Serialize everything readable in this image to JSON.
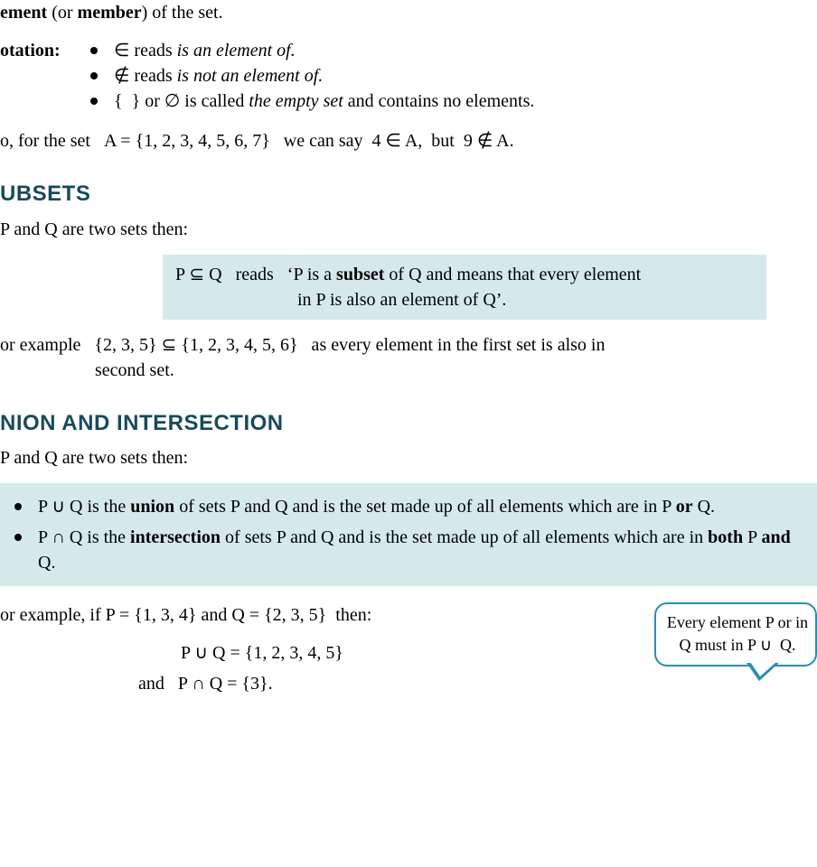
{
  "line_top_html": "<b>ement</b> (or <b>member</b>) of the set.",
  "notation_label": "otation:",
  "notation_items": [
    "∈ reads <i>is an element of.</i>",
    "∉ reads <i>is not an element of.</i>",
    "{&nbsp;&nbsp;} or ∅ is called <i>the empty set</i> and contains no elements."
  ],
  "example_set_line": "o, for the set&nbsp;&nbsp;&nbsp;A = {1, 2, 3, 4, 5, 6, 7}&nbsp;&nbsp;&nbsp;we can say&nbsp;&nbsp;4 ∈ A,&nbsp;&nbsp;but&nbsp;&nbsp;9 ∉ A.",
  "heading_subsets": "UBSETS",
  "pq_intro": "P and Q are two sets then:",
  "subset_box_html": "P ⊆ Q&nbsp;&nbsp;&nbsp;reads&nbsp;&nbsp;&nbsp;‘P is a <b>subset</b> of Q and means that every element<br>&nbsp;&nbsp;&nbsp;&nbsp;&nbsp;&nbsp;&nbsp;&nbsp;&nbsp;&nbsp;&nbsp;&nbsp;&nbsp;&nbsp;&nbsp;&nbsp;&nbsp;&nbsp;&nbsp;&nbsp;&nbsp;&nbsp;&nbsp;&nbsp;&nbsp;&nbsp;&nbsp;in P is also an element of Q’.",
  "subset_example_html": "or example&nbsp;&nbsp;&nbsp;{2, 3, 5} ⊆ {1, 2, 3, 4, 5, 6}&nbsp;&nbsp;&nbsp;as every element in the first set is also in<br>&nbsp;&nbsp;&nbsp;&nbsp;&nbsp;&nbsp;&nbsp;&nbsp;&nbsp;&nbsp;&nbsp;&nbsp;&nbsp;&nbsp;&nbsp;&nbsp;&nbsp;&nbsp;&nbsp;&nbsp;&nbsp;second set.",
  "heading_union": "NION AND INTERSECTION",
  "union_items": [
    "P ∪ Q is the <b>union</b> of sets P and Q and is the set made up of all elements which are in P <b>or</b> Q.",
    "P ∩ Q is the <b>intersection</b> of sets P and Q and is the set made up of all elements which are in <b>both</b> P <b>and</b> Q."
  ],
  "union_example_intro": "or example, if P = {1, 3, 4} and Q = {2, 3, 5}&nbsp;&nbsp;then:",
  "union_result": "P ∪ Q = {1, 2, 3, 4, 5}",
  "intersection_result": "and&nbsp;&nbsp;&nbsp;P ∩ Q = {3}.",
  "callout_html": "Every element P or in Q must in P ∪&nbsp;&nbsp;Q.",
  "colors": {
    "box_bg": "#d6e9ea",
    "heading_color": "#194a5a",
    "callout_border": "#2a8db5"
  }
}
